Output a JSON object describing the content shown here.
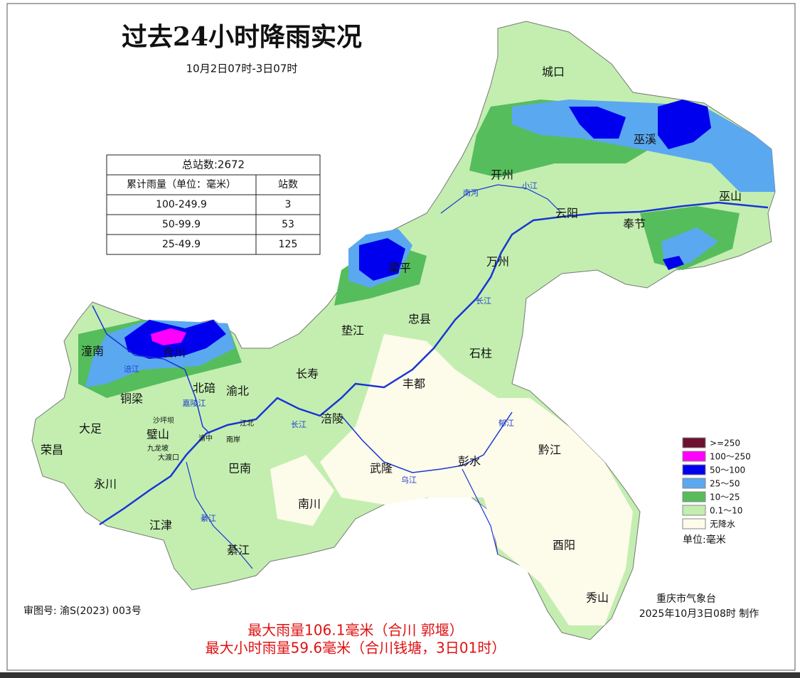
{
  "title": "过去24小时降雨实况",
  "subtitle": "10月2日07时-3日07时",
  "table": {
    "title": "总站数:2672",
    "header": [
      "累计雨量（单位：毫米）",
      "站数"
    ],
    "rows": [
      [
        "100-249.9",
        3
      ],
      [
        "50-99.9",
        53
      ],
      [
        "25-49.9",
        125
      ]
    ]
  },
  "legend": {
    "items": [
      {
        "label": ">=250",
        "color": "#6e1030"
      },
      {
        "label": "100～250",
        "color": "#ff00ff"
      },
      {
        "label": "50～100",
        "color": "#0000ee"
      },
      {
        "label": "25～50",
        "color": "#5aa8f0"
      },
      {
        "label": "10～25",
        "color": "#56bd5c"
      },
      {
        "label": "0.1～10",
        "color": "#c3eeb0"
      },
      {
        "label": "无降水",
        "color": "#fdfbe9"
      }
    ],
    "unit": "单位:毫米"
  },
  "places": [
    "城口",
    "巫溪",
    "开州",
    "巫山",
    "云阳",
    "奉节",
    "万州",
    "梁平",
    "忠县",
    "垫江",
    "石柱",
    "潼南",
    "合川",
    "长寿",
    "丰都",
    "铜梁",
    "北碚",
    "渝北",
    "大足",
    "璧山",
    "涪陵",
    "荣昌",
    "巴南",
    "武隆",
    "彭水",
    "黔江",
    "永川",
    "南川",
    "江津",
    "綦江",
    "酉阳",
    "秀山"
  ],
  "districts": [
    "沙坪坝",
    "九龙坡",
    "大渡口",
    "渝中",
    "江北",
    "南岸"
  ],
  "rivers": [
    "南河",
    "小江",
    "长江",
    "涪江",
    "嘉陵江",
    "长江",
    "乌江",
    "郁江",
    "綦江"
  ],
  "footer": {
    "review_no": "审图号: 渝S(2023) 003号",
    "max_rain": "最大雨量106.1毫米（合川 郭堰）",
    "max_hourly": "最大小时雨量59.6毫米（合川钱塘，3日01时）",
    "issuer": "重庆市气象台",
    "made": "2025年10月3日08时 制作"
  }
}
